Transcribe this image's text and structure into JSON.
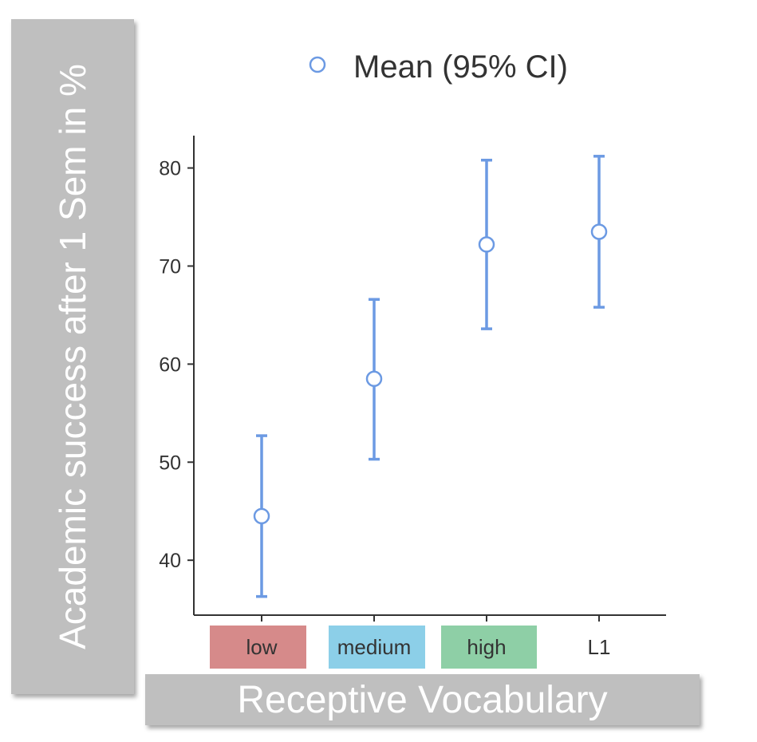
{
  "chart_data": {
    "type": "scatter",
    "categories": [
      "low",
      "medium",
      "high",
      "L1"
    ],
    "category_colors": [
      "#d68a8a",
      "#8ccfe8",
      "#8ecfa6",
      ""
    ],
    "series": [
      {
        "name": "Mean (95% CI)",
        "mean": [
          44.5,
          58.5,
          72.2,
          73.5
        ],
        "ci_lower": [
          36.3,
          50.3,
          63.6,
          65.8
        ],
        "ci_upper": [
          52.7,
          66.6,
          80.8,
          81.2
        ]
      }
    ],
    "yticks": [
      40,
      50,
      60,
      70,
      80
    ],
    "ylim": [
      34.4,
      83.3
    ],
    "xlabel": "Receptive Vocabulary",
    "ylabel": "Academic success after 1 Sem in %",
    "legend_position": "top",
    "marker_color": "#6c9ae3",
    "axis_color": "#333333"
  }
}
